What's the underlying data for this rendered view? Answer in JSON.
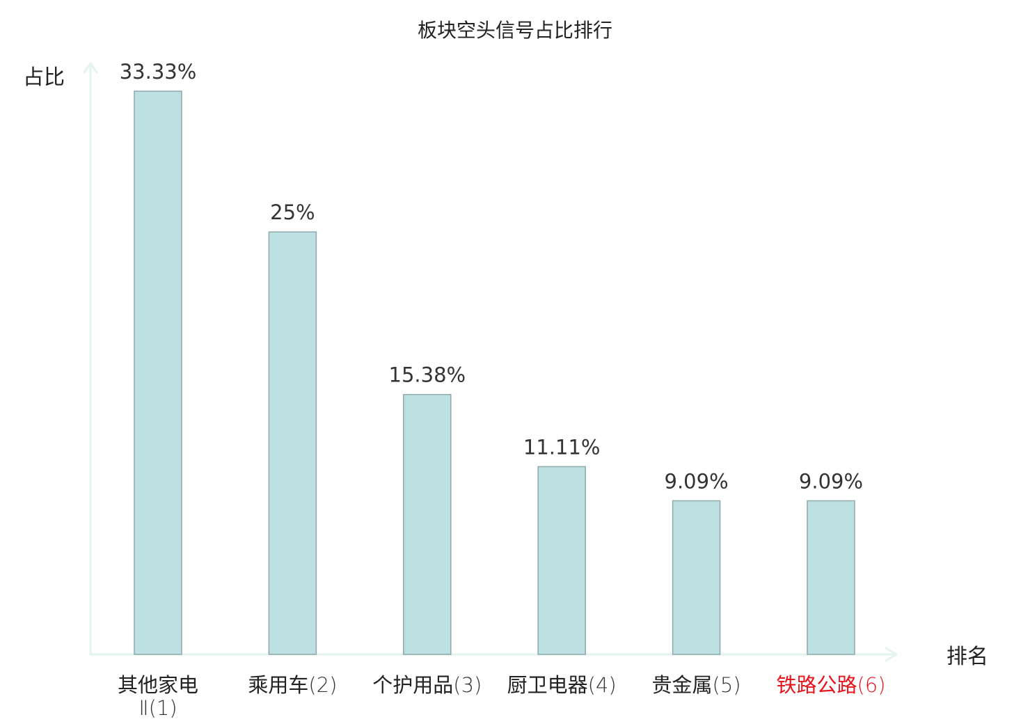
{
  "chart_data": {
    "type": "bar",
    "title": "板块空头信号占比排行",
    "xlabel": "排名",
    "ylabel": "占比",
    "categories": [
      {
        "name": "其他家电",
        "rank_label": "Ⅱ(1)",
        "wrap": true,
        "highlight": false
      },
      {
        "name": "乘用车",
        "rank_label": "(2)",
        "wrap": false,
        "highlight": false
      },
      {
        "name": "个护用品",
        "rank_label": "(3)",
        "wrap": false,
        "highlight": false
      },
      {
        "name": "厨卫电器",
        "rank_label": "(4)",
        "wrap": false,
        "highlight": false
      },
      {
        "name": "贵金属",
        "rank_label": "(5)",
        "wrap": false,
        "highlight": false
      },
      {
        "name": "铁路公路",
        "rank_label": "(6)",
        "wrap": false,
        "highlight": true
      }
    ],
    "values": [
      33.33,
      25,
      15.38,
      11.11,
      9.09,
      9.09
    ],
    "value_labels": [
      "33.33%",
      "25%",
      "15.38%",
      "11.11%",
      "9.09%",
      "9.09%"
    ],
    "ylim": [
      0,
      33.33
    ],
    "grid": false,
    "legend": "none",
    "colors": {
      "bar_fill": "#bde0e3",
      "bar_stroke": "#8fa8aa",
      "axis": "#e3f3f1",
      "text": "#222222",
      "value_text": "#333333",
      "highlight": "#e8141c"
    }
  }
}
